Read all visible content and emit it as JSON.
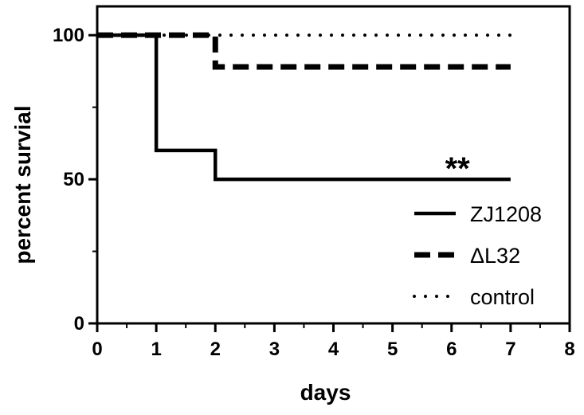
{
  "chart_data": {
    "type": "line",
    "step": true,
    "title": "",
    "xlabel": "days",
    "ylabel": "percent survial",
    "xlim": [
      0,
      8
    ],
    "ylim": [
      0,
      110
    ],
    "x_ticks": [
      "0",
      "1",
      "2",
      "3",
      "4",
      "5",
      "6",
      "7",
      "8"
    ],
    "y_ticks": [
      "0",
      "50",
      "100"
    ],
    "grid": false,
    "legend_position": "bottom-right",
    "annotation": {
      "text": "**",
      "x": 6.1,
      "y": 55
    },
    "series": [
      {
        "name": "ZJ1208",
        "line_style": "solid",
        "color": "#000000",
        "points": [
          [
            0,
            100
          ],
          [
            1,
            100
          ],
          [
            1,
            60
          ],
          [
            2,
            60
          ],
          [
            2,
            50
          ],
          [
            7,
            50
          ]
        ]
      },
      {
        "name": "ΔL32",
        "line_style": "dashed",
        "color": "#000000",
        "points": [
          [
            0,
            100
          ],
          [
            2,
            100
          ],
          [
            2,
            89
          ],
          [
            7,
            89
          ]
        ]
      },
      {
        "name": "control",
        "line_style": "dotted",
        "color": "#000000",
        "points": [
          [
            0,
            100
          ],
          [
            7,
            100
          ]
        ]
      }
    ]
  }
}
